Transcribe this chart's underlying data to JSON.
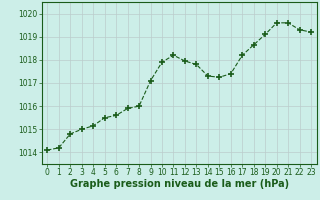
{
  "x": [
    0,
    1,
    2,
    3,
    4,
    5,
    6,
    7,
    8,
    9,
    10,
    11,
    12,
    13,
    14,
    15,
    16,
    17,
    18,
    19,
    20,
    21,
    22,
    23
  ],
  "y": [
    1014.1,
    1014.2,
    1014.8,
    1015.0,
    1015.15,
    1015.5,
    1015.6,
    1015.9,
    1016.0,
    1017.1,
    1017.9,
    1018.2,
    1017.95,
    1017.8,
    1017.3,
    1017.25,
    1017.4,
    1018.2,
    1018.65,
    1019.1,
    1019.6,
    1019.6,
    1019.3,
    1019.2
  ],
  "line_color": "#1a5c1a",
  "marker_color": "#1a5c1a",
  "bg_color": "#cceee8",
  "grid_color": "#bbcccc",
  "xlabel": "Graphe pression niveau de la mer (hPa)",
  "xlabel_color": "#1a5c1a",
  "xlim": [
    -0.5,
    23.5
  ],
  "ylim": [
    1013.5,
    1020.5
  ],
  "yticks": [
    1014,
    1015,
    1016,
    1017,
    1018,
    1019,
    1020
  ],
  "xticks": [
    0,
    1,
    2,
    3,
    4,
    5,
    6,
    7,
    8,
    9,
    10,
    11,
    12,
    13,
    14,
    15,
    16,
    17,
    18,
    19,
    20,
    21,
    22,
    23
  ],
  "tick_color": "#1a5c1a",
  "spine_color": "#1a5c1a",
  "xlabel_fontsize": 7,
  "xlabel_fontweight": "bold",
  "tick_fontsize": 5.5
}
